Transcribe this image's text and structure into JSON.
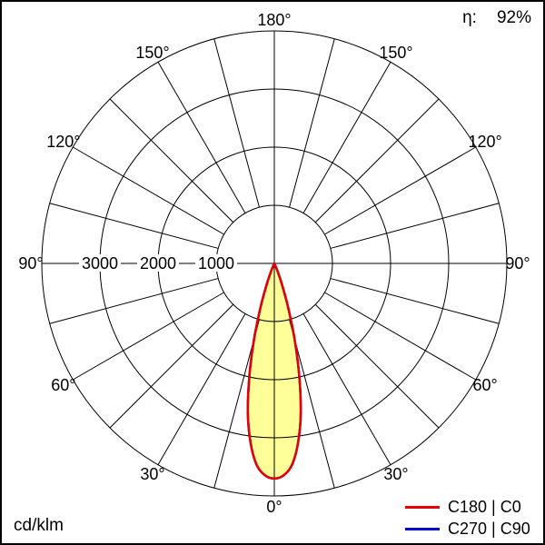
{
  "header": {
    "eta_label": "η:",
    "eta_value": "92%"
  },
  "footer": {
    "unit": "cd/klm"
  },
  "legend": [
    {
      "label": "C180 | C0",
      "color": "#e60000"
    },
    {
      "label": "C270 | C90",
      "color": "#0000cc"
    }
  ],
  "chart_data": {
    "type": "polar",
    "subtype": "luminous-intensity-distribution",
    "unit": "cd/klm",
    "efficiency_percent": 92,
    "angle_zero": "bottom (nadir), increasing to 180 at top on both sides",
    "angle_grid_step_deg": 15,
    "angle_tick_labels_deg": [
      0,
      30,
      60,
      90,
      120,
      150,
      180
    ],
    "radial_ticks": [
      1000,
      2000,
      3000
    ],
    "radial_max": 4000,
    "grid": true,
    "legend_position": "bottom-right",
    "beam_fill_color": "#ffff99",
    "series": [
      {
        "name": "C180 | C0",
        "color": "#e60000",
        "symmetric": true,
        "points_gamma_cd_per_klm": [
          [
            0,
            3700
          ],
          [
            2.5,
            3650
          ],
          [
            5,
            3480
          ],
          [
            7.5,
            3120
          ],
          [
            10,
            2620
          ],
          [
            12.5,
            1980
          ],
          [
            15,
            1340
          ],
          [
            17.5,
            780
          ],
          [
            20,
            380
          ],
          [
            22.5,
            150
          ],
          [
            25,
            40
          ],
          [
            27.5,
            0
          ],
          [
            30,
            0
          ],
          [
            60,
            0
          ],
          [
            90,
            0
          ],
          [
            120,
            0
          ],
          [
            150,
            0
          ],
          [
            180,
            0
          ]
        ]
      },
      {
        "name": "C270 | C90",
        "color": "#0000cc",
        "symmetric": true,
        "points_gamma_cd_per_klm": [
          [
            0,
            3700
          ],
          [
            2.5,
            3650
          ],
          [
            5,
            3480
          ],
          [
            7.5,
            3120
          ],
          [
            10,
            2620
          ],
          [
            12.5,
            1980
          ],
          [
            15,
            1340
          ],
          [
            17.5,
            780
          ],
          [
            20,
            380
          ],
          [
            22.5,
            150
          ],
          [
            25,
            40
          ],
          [
            27.5,
            0
          ],
          [
            30,
            0
          ],
          [
            60,
            0
          ],
          [
            90,
            0
          ],
          [
            120,
            0
          ],
          [
            150,
            0
          ],
          [
            180,
            0
          ]
        ]
      }
    ]
  }
}
